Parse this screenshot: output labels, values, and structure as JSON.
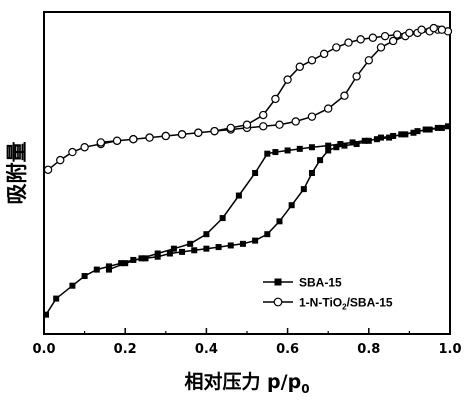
{
  "chart_data": {
    "type": "line",
    "xlabel": "相对压力 p/p",
    "xlabel_sub": "0",
    "ylabel": "吸附量",
    "xlim": [
      0.0,
      1.0
    ],
    "ylim": [
      0.0,
      1.0
    ],
    "x_ticks": [
      "0.0",
      "0.2",
      "0.4",
      "0.6",
      "0.8",
      "1.0"
    ],
    "y_ticks": [],
    "grid": false,
    "legend_position": "bottom-right",
    "series": [
      {
        "name": "SBA-15",
        "marker": "square-filled",
        "color": "#000000",
        "x": [
          0.005,
          0.03,
          0.07,
          0.1,
          0.13,
          0.16,
          0.19,
          0.22,
          0.25,
          0.28,
          0.31,
          0.34,
          0.37,
          0.4,
          0.43,
          0.46,
          0.49,
          0.52,
          0.55,
          0.58,
          0.61,
          0.64,
          0.66,
          0.68,
          0.7,
          0.72,
          0.74,
          0.77,
          0.8,
          0.83,
          0.86,
          0.89,
          0.92,
          0.95,
          0.98,
          0.995,
          0.97,
          0.94,
          0.91,
          0.88,
          0.85,
          0.82,
          0.79,
          0.76,
          0.73,
          0.7,
          0.66,
          0.63,
          0.6,
          0.57,
          0.55,
          0.52,
          0.48,
          0.44,
          0.4,
          0.36,
          0.32,
          0.28,
          0.24,
          0.2,
          0.16
        ],
        "y": [
          0.06,
          0.11,
          0.15,
          0.18,
          0.2,
          0.21,
          0.22,
          0.23,
          0.235,
          0.24,
          0.25,
          0.255,
          0.26,
          0.265,
          0.27,
          0.275,
          0.28,
          0.29,
          0.31,
          0.35,
          0.4,
          0.45,
          0.5,
          0.54,
          0.57,
          0.58,
          0.585,
          0.59,
          0.6,
          0.61,
          0.615,
          0.62,
          0.63,
          0.635,
          0.64,
          0.645,
          0.64,
          0.635,
          0.625,
          0.62,
          0.61,
          0.605,
          0.6,
          0.595,
          0.59,
          0.585,
          0.58,
          0.575,
          0.57,
          0.565,
          0.56,
          0.5,
          0.43,
          0.36,
          0.31,
          0.28,
          0.265,
          0.25,
          0.235,
          0.22,
          0.2
        ]
      },
      {
        "name": "1-N-TiO2/SBA-15",
        "marker": "circle-open",
        "color": "#000000",
        "x": [
          0.01,
          0.04,
          0.07,
          0.1,
          0.14,
          0.18,
          0.22,
          0.26,
          0.3,
          0.34,
          0.38,
          0.42,
          0.46,
          0.5,
          0.54,
          0.58,
          0.62,
          0.66,
          0.7,
          0.74,
          0.77,
          0.8,
          0.83,
          0.86,
          0.89,
          0.92,
          0.95,
          0.97,
          0.995,
          0.98,
          0.96,
          0.93,
          0.9,
          0.87,
          0.84,
          0.81,
          0.78,
          0.75,
          0.72,
          0.69,
          0.66,
          0.63,
          0.6,
          0.57,
          0.54,
          0.5,
          0.46,
          0.42,
          0.38,
          0.34,
          0.3,
          0.26,
          0.22,
          0.18,
          0.14
        ],
        "y": [
          0.51,
          0.54,
          0.565,
          0.58,
          0.59,
          0.6,
          0.605,
          0.61,
          0.615,
          0.62,
          0.625,
          0.63,
          0.635,
          0.64,
          0.645,
          0.65,
          0.66,
          0.675,
          0.7,
          0.74,
          0.8,
          0.85,
          0.89,
          0.91,
          0.925,
          0.935,
          0.94,
          0.945,
          0.94,
          0.945,
          0.95,
          0.945,
          0.935,
          0.93,
          0.925,
          0.92,
          0.915,
          0.905,
          0.89,
          0.87,
          0.85,
          0.83,
          0.79,
          0.73,
          0.68,
          0.65,
          0.64,
          0.63,
          0.625,
          0.62,
          0.615,
          0.61,
          0.605,
          0.6,
          0.595
        ]
      }
    ]
  }
}
